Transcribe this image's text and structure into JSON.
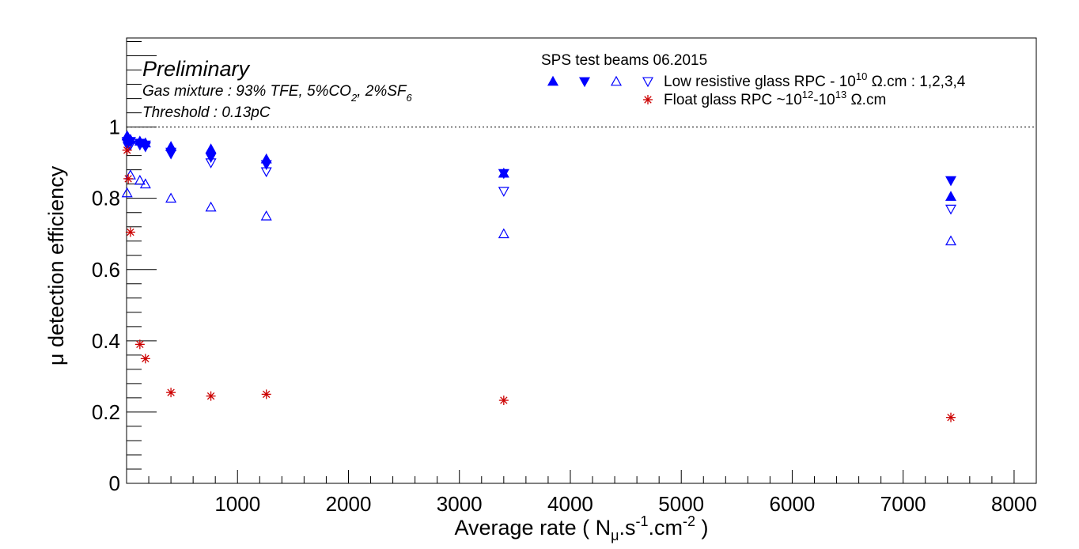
{
  "chart_data": {
    "type": "scatter",
    "title": "",
    "xlabel": {
      "main": "Average rate ( N",
      "sub": "μ",
      "mid": ".s",
      "sup1": "-1",
      "mid2": ".cm",
      "sup2": "-2",
      "end": " )"
    },
    "ylabel": "μ detection efficiency",
    "xlim": [
      0,
      8200
    ],
    "ylim": [
      0,
      1.25
    ],
    "xticks": [
      1000,
      2000,
      3000,
      4000,
      5000,
      6000,
      7000,
      8000
    ],
    "xtick_labels": [
      "1000",
      "2000",
      "3000",
      "4000",
      "5000",
      "6000",
      "7000",
      "8000"
    ],
    "yticks": [
      0,
      0.2,
      0.4,
      0.6,
      0.8,
      1
    ],
    "ytick_labels": [
      "0",
      "0.2",
      "0.4",
      "0.6",
      "0.8",
      "1"
    ],
    "reference_line": {
      "y": 1.0,
      "style": "dotted"
    },
    "annotations": {
      "preliminary": "Preliminary",
      "gas": {
        "pre": "Gas mixture : 93% TFE, 5%CO",
        "sub1": "2",
        "mid": ", 2%SF",
        "sub2": "6"
      },
      "threshold": "Threshold : 0.13pC"
    },
    "legend": {
      "placement": "top-right",
      "header": "SPS test beams 06.2015",
      "entries": [
        {
          "label_pre": "Low resistive glass RPC - 10",
          "label_sup": "10",
          "label_post": " Ω.cm : 1,2,3,4"
        },
        {
          "label_pre": "Float glass RPC ~10",
          "label_sup": "12",
          "label_mid": "-10",
          "label_sup2": "13",
          "label_post": " Ω.cm"
        }
      ]
    },
    "series": [
      {
        "name": "RPC 1",
        "marker": "triangle-up-filled",
        "color": "#0000ff",
        "x": [
          5,
          15,
          35,
          120,
          170,
          400,
          760,
          1260,
          3400,
          7430
        ],
        "y": [
          0.975,
          0.97,
          0.965,
          0.96,
          0.955,
          0.945,
          0.938,
          0.91,
          0.87,
          0.805
        ]
      },
      {
        "name": "RPC 2",
        "marker": "triangle-down-filled",
        "color": "#0000ff",
        "x": [
          5,
          15,
          35,
          120,
          170,
          400,
          760,
          1260,
          3400,
          7430
        ],
        "y": [
          0.96,
          0.955,
          0.96,
          0.955,
          0.95,
          0.925,
          0.915,
          0.895,
          0.87,
          0.85
        ]
      },
      {
        "name": "RPC 3",
        "marker": "triangle-up-open",
        "color": "#0000ff",
        "x": [
          5,
          35,
          120,
          170,
          400,
          760,
          1260,
          3400,
          7430
        ],
        "y": [
          0.815,
          0.865,
          0.85,
          0.84,
          0.8,
          0.775,
          0.75,
          0.7,
          0.68
        ]
      },
      {
        "name": "RPC 4",
        "marker": "triangle-down-open",
        "color": "#0000ff",
        "x": [
          5,
          15,
          35,
          120,
          170,
          400,
          760,
          1260,
          3400,
          7430
        ],
        "y": [
          0.955,
          0.945,
          0.95,
          0.95,
          0.945,
          0.93,
          0.9,
          0.875,
          0.82,
          0.77
        ]
      },
      {
        "name": "Float glass RPC",
        "marker": "star",
        "color": "#cc0000",
        "x": [
          5,
          15,
          35,
          120,
          170,
          400,
          760,
          1260,
          3400,
          7430
        ],
        "y": [
          0.935,
          0.855,
          0.705,
          0.39,
          0.35,
          0.255,
          0.245,
          0.25,
          0.233,
          0.185
        ]
      }
    ]
  }
}
